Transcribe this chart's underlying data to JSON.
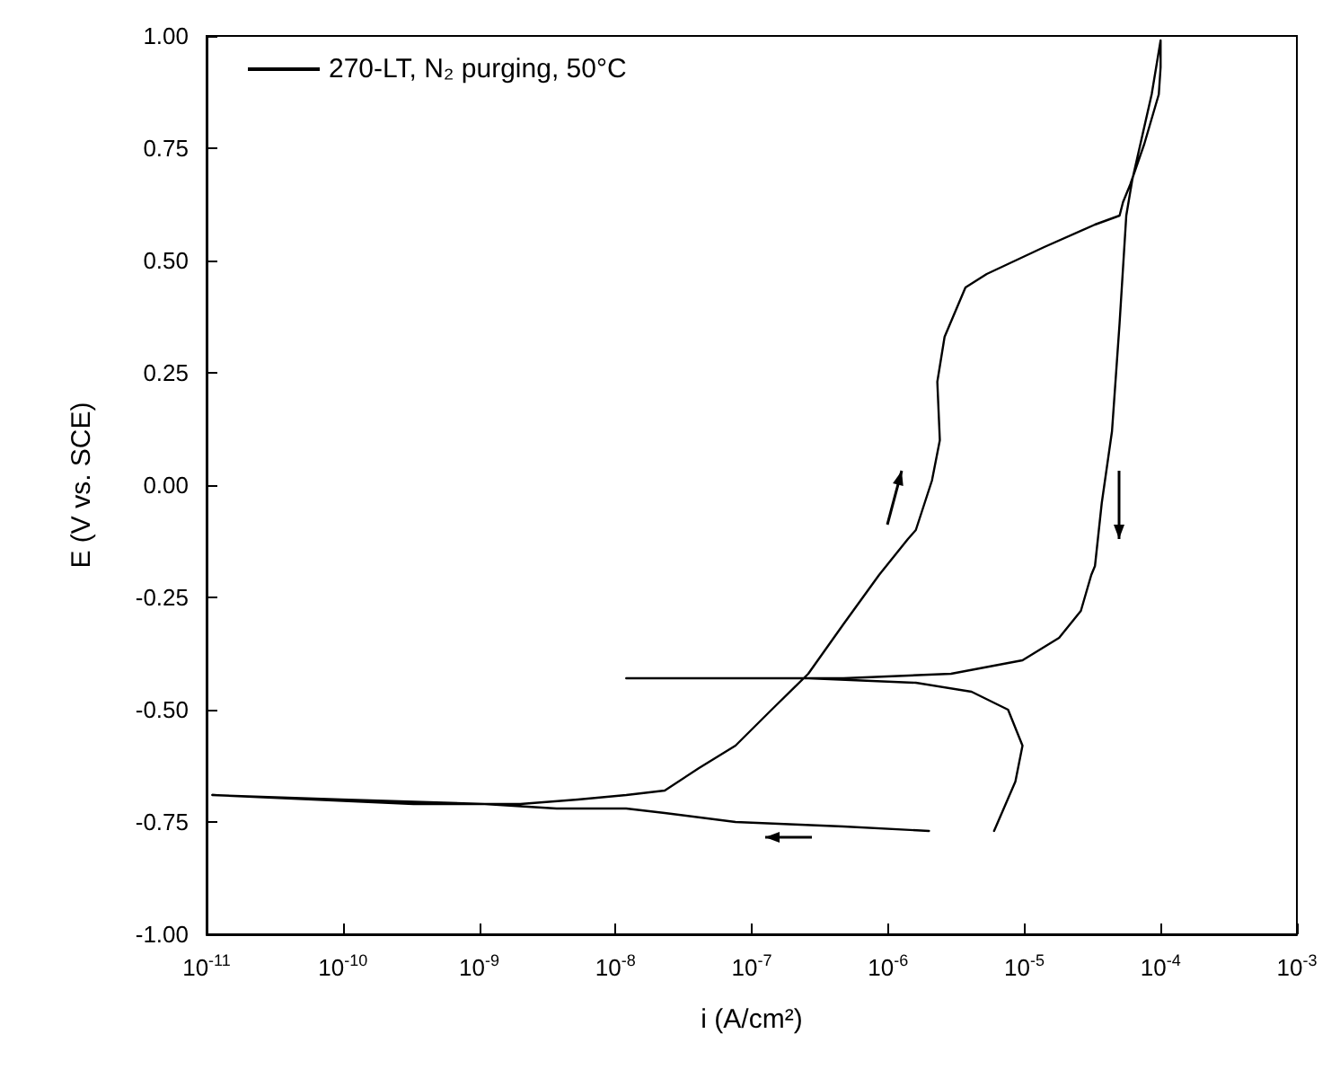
{
  "chart_data": {
    "type": "line",
    "xlabel": "i (A/cm²)",
    "ylabel": "E (V vs. SCE)",
    "log": "x",
    "legend": "top left",
    "grid": false,
    "marker": "none",
    "xlim": [
      1e-11,
      0.001
    ],
    "ylim": [
      -1,
      1
    ],
    "xticks": [
      {
        "value": 1e-11,
        "label": "10$^{-11}$"
      },
      {
        "value": 1e-10,
        "label": "10$^{-10}$"
      },
      {
        "value": 1e-09,
        "label": "10$^{-9}$"
      },
      {
        "value": 1e-08,
        "label": "10$^{-8}$"
      },
      {
        "value": 1e-07,
        "label": "10$^{-7}$"
      },
      {
        "value": 1e-06,
        "label": "10$^{-6}$"
      },
      {
        "value": 1e-05,
        "label": "10$^{-5}$"
      },
      {
        "value": 0.0001,
        "label": "10$^{-4}$"
      },
      {
        "value": 0.001,
        "label": "10$^{-3}$"
      }
    ],
    "yticks": [
      {
        "value": -1,
        "label": "-1.00"
      },
      {
        "value": -0.75,
        "label": "-0.75"
      },
      {
        "value": -0.5,
        "label": "-0.50"
      },
      {
        "value": -0.25,
        "label": "-0.25"
      },
      {
        "value": 0,
        "label": "0.00"
      },
      {
        "value": 0.25,
        "label": "0.25"
      },
      {
        "value": 0.5,
        "label": "0.50"
      },
      {
        "value": 0.75,
        "label": "0.75"
      },
      {
        "value": 1,
        "label": "1.00"
      }
    ],
    "series": [
      {
        "name": "270-LT, N₂ purging, 50°C",
        "color": "#000000",
        "x": [
          2e-06,
          4.7e-07,
          7.6e-08,
          2.3e-08,
          1.2e-08,
          3.7e-09,
          1.1e-09,
          9.8e-11,
          1.1e-11,
          3.3e-10,
          2e-09,
          5.3e-09,
          1.2e-08,
          2.3e-08,
          4.1e-08,
          7.6e-08,
          1.4e-07,
          2.6e-07,
          4.7e-07,
          8.6e-07,
          1.4e-06,
          1.6e-06,
          2.1e-06,
          2.4e-06,
          2.3e-06,
          2.6e-06,
          3.7e-06,
          5.3e-06,
          1.4e-05,
          3.3e-05,
          5e-05,
          5.3e-05,
          6e-05,
          7.6e-05,
          9.7e-05,
          0.0001,
          0.0001,
          8.6e-05,
          6.2e-05,
          5.6e-05,
          5e-05,
          4.4e-05,
          3.7e-05,
          3.3e-05,
          3.1e-05,
          2.6e-05,
          1.8e-05,
          9.7e-06,
          2.9e-06,
          4.7e-07,
          4.1e-08,
          1.2e-08,
          4.1e-08,
          2.6e-07,
          1.6e-06,
          4.1e-06,
          7.6e-06,
          9.7e-06,
          8.6e-06,
          6e-06
        ],
        "values": [
          -0.77,
          -0.76,
          -0.75,
          -0.73,
          -0.72,
          -0.72,
          -0.71,
          -0.7,
          -0.69,
          -0.71,
          -0.71,
          -0.7,
          -0.69,
          -0.68,
          -0.63,
          -0.58,
          -0.5,
          -0.42,
          -0.31,
          -0.2,
          -0.12,
          -0.1,
          0.01,
          0.1,
          0.23,
          0.33,
          0.44,
          0.47,
          0.53,
          0.58,
          0.6,
          0.63,
          0.67,
          0.76,
          0.87,
          0.93,
          0.99,
          0.87,
          0.68,
          0.6,
          0.36,
          0.12,
          -0.04,
          -0.18,
          -0.2,
          -0.28,
          -0.34,
          -0.39,
          -0.42,
          -0.43,
          -0.43,
          -0.43,
          -0.43,
          -0.43,
          -0.44,
          -0.46,
          -0.5,
          -0.58,
          -0.66,
          -0.77
        ]
      }
    ]
  }
}
